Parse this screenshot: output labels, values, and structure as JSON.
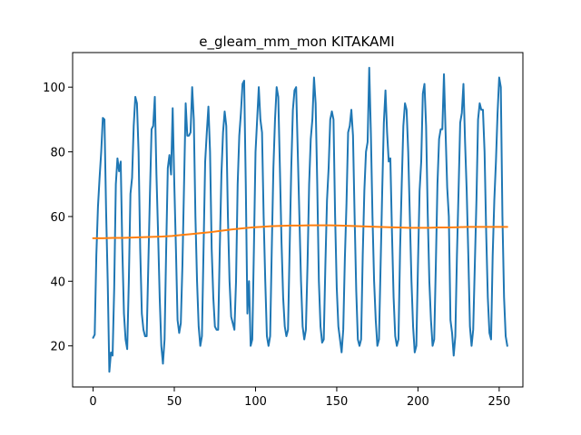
{
  "chart_data": {
    "type": "line",
    "title": "e_gleam_mm_mon KITAKAMI",
    "xlabel": "",
    "ylabel": "",
    "xlim": [
      -12.6,
      264.6
    ],
    "ylim": [
      7.3,
      110.7
    ],
    "xticks": [
      0,
      50,
      100,
      150,
      200,
      250
    ],
    "yticks": [
      20,
      40,
      60,
      80,
      100
    ],
    "grid": false,
    "series": [
      {
        "color": "#1f77b4",
        "values": [
          22.5,
          23.5,
          48,
          63,
          72,
          80,
          90.5,
          90,
          62,
          40,
          12,
          18,
          17,
          38,
          70,
          78,
          74,
          77,
          50,
          30,
          22,
          19,
          40,
          67,
          72,
          88,
          97,
          95,
          80,
          50,
          30,
          25,
          23,
          23,
          45,
          67,
          87,
          88,
          97,
          73,
          55,
          35,
          20,
          14.5,
          22,
          50,
          75,
          79,
          73,
          93.5,
          70,
          50,
          28,
          24,
          27,
          45,
          70,
          95,
          85,
          85,
          86,
          100,
          90,
          60,
          40,
          26,
          20,
          23,
          50,
          77,
          86,
          94,
          80,
          50,
          35,
          26,
          25,
          25,
          50,
          73,
          86,
          92.5,
          88,
          60,
          40,
          29,
          27,
          25,
          40,
          70,
          85,
          92,
          101,
          102,
          70,
          30,
          40,
          20,
          22,
          50,
          80,
          90,
          100,
          90,
          86,
          60,
          40,
          23,
          20,
          23,
          50,
          75,
          90,
          100,
          97,
          75,
          52,
          35,
          26,
          23,
          25,
          50,
          75,
          93,
          99,
          100,
          80,
          60,
          40,
          26,
          22,
          25,
          45,
          70,
          84,
          90,
          103,
          95,
          70,
          40,
          26,
          21,
          22,
          45,
          65,
          75,
          90,
          92.5,
          90,
          60,
          38,
          26,
          22,
          18,
          25,
          47,
          64,
          86,
          88,
          93,
          85,
          60,
          37,
          22,
          20,
          22,
          48,
          68,
          80,
          83,
          106,
          86,
          60,
          40,
          28,
          20,
          22,
          45,
          68,
          89,
          99,
          86,
          77,
          78,
          55,
          35,
          23,
          20,
          22,
          50,
          70,
          88,
          95,
          93,
          80,
          60,
          40,
          26,
          18,
          20,
          45,
          68,
          77,
          98,
          101,
          88,
          61,
          40,
          28,
          20,
          22,
          45,
          70,
          84,
          87,
          87,
          104,
          86,
          69,
          60,
          28,
          24,
          17,
          23,
          48,
          68,
          89,
          92,
          101,
          83,
          68,
          48,
          26,
          20,
          25,
          45,
          65,
          90,
          95,
          93,
          93,
          80,
          55,
          35,
          24,
          22,
          48,
          65,
          77,
          92,
          103,
          100,
          60,
          35,
          23,
          20
        ]
      },
      {
        "color": "#ff7f0e",
        "values": [
          53.3,
          53.3,
          53.4,
          53.4,
          53.5,
          53.6,
          53.7,
          53.8,
          54.0,
          54.3,
          54.6,
          54.9,
          55.2,
          55.6,
          56.0,
          56.3,
          56.6,
          56.8,
          57.0,
          57.1,
          57.2,
          57.2,
          57.3,
          57.3,
          57.3,
          57.2,
          57.1,
          57.0,
          56.9,
          56.8,
          56.7,
          56.6,
          56.5,
          56.5,
          56.5,
          56.6,
          56.6,
          56.7,
          56.8,
          56.8,
          56.8,
          56.8,
          56.8
        ]
      }
    ]
  }
}
